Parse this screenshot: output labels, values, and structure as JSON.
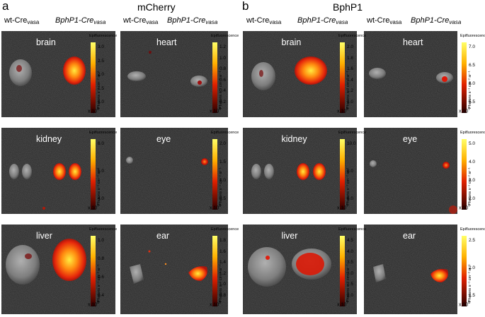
{
  "panels": [
    {
      "letter": "a",
      "title": "mCherry",
      "columns": [
        {
          "label": "wt-Cre",
          "sub": "vasa",
          "italic": false
        },
        {
          "label": "BphP1-Cre",
          "sub": "vasa",
          "italic": true
        },
        {
          "label": "wt-Cre",
          "sub": "vasa",
          "italic": false
        },
        {
          "label": "BphP1-Cre",
          "sub": "vasa",
          "italic": true
        }
      ],
      "tiles": [
        {
          "organ": "brain",
          "scale_ticks": [
            "3.0",
            "2.5",
            "2.0",
            "1.5",
            "1.0"
          ],
          "multiplier": "x 10",
          "exponent": "8"
        },
        {
          "organ": "heart",
          "scale_ticks": [
            "1.2",
            "1.0",
            "0.8",
            "0.6",
            "0.4",
            "0.2"
          ],
          "multiplier": "x 10",
          "exponent": "8"
        },
        {
          "organ": "kidney",
          "scale_ticks": [
            "6.0",
            "5.0",
            "4.0"
          ],
          "multiplier": "x 10",
          "exponent": "7"
        },
        {
          "organ": "eye",
          "scale_ticks": [
            "2.0",
            "1.5",
            "1.0",
            "0.5"
          ],
          "multiplier": "x 10",
          "exponent": "8"
        },
        {
          "organ": "liver",
          "scale_ticks": [
            "1.0",
            "0.8",
            "0.6",
            "0.4"
          ],
          "multiplier": "x 10",
          "exponent": "8"
        },
        {
          "organ": "ear",
          "scale_ticks": [
            "1.8",
            "1.6",
            "1.4",
            "1.2",
            "1.0",
            "0.8"
          ],
          "multiplier": "x 10",
          "exponent": "8"
        }
      ]
    },
    {
      "letter": "b",
      "title": "BphP1",
      "columns": [
        {
          "label": "wt-Cre",
          "sub": "vasa",
          "italic": false
        },
        {
          "label": "BphP1-Cre",
          "sub": "vasa",
          "italic": true
        },
        {
          "label": "wt-Cre",
          "sub": "vasa",
          "italic": false
        },
        {
          "label": "BphP1-Cre",
          "sub": "vasa",
          "italic": true
        }
      ],
      "tiles": [
        {
          "organ": "brain",
          "scale_ticks": [
            "2.0",
            "1.8",
            "1.6",
            "1.4",
            "1.2",
            "1.0"
          ],
          "multiplier": "x 10",
          "exponent": "8"
        },
        {
          "organ": "heart",
          "scale_ticks": [
            "7.0",
            "6.5",
            "6.0",
            "5.5"
          ],
          "multiplier": "x 10",
          "exponent": "7"
        },
        {
          "organ": "kidney",
          "scale_ticks": [
            "10.0",
            "8.0",
            "6.0"
          ],
          "multiplier": "x 10",
          "exponent": "7"
        },
        {
          "organ": "eye",
          "scale_ticks": [
            "5.0",
            "4.0",
            "3.0",
            "2.0"
          ],
          "multiplier": "x 10",
          "exponent": "7"
        },
        {
          "organ": "liver",
          "scale_ticks": [
            "4.5",
            "4.0",
            "3.5",
            "3.0",
            "2.5",
            "2.0"
          ],
          "multiplier": "x 10",
          "exponent": "7"
        },
        {
          "organ": "ear",
          "scale_ticks": [
            "2.5",
            "2.0",
            "1.5"
          ],
          "multiplier": "x 10",
          "exponent": "8"
        }
      ]
    }
  ],
  "scale_header": "Epifluorescence",
  "scale_axis_label": "Photons s⁻¹ cm⁻² sr⁻¹",
  "colors": {
    "tile_bg": "#1b1b1b",
    "hot_core": "#fff34a",
    "hot_mid": "#ff7a10",
    "hot_edge": "#d01a0a",
    "tissue_gray": "#8d8d8d"
  }
}
